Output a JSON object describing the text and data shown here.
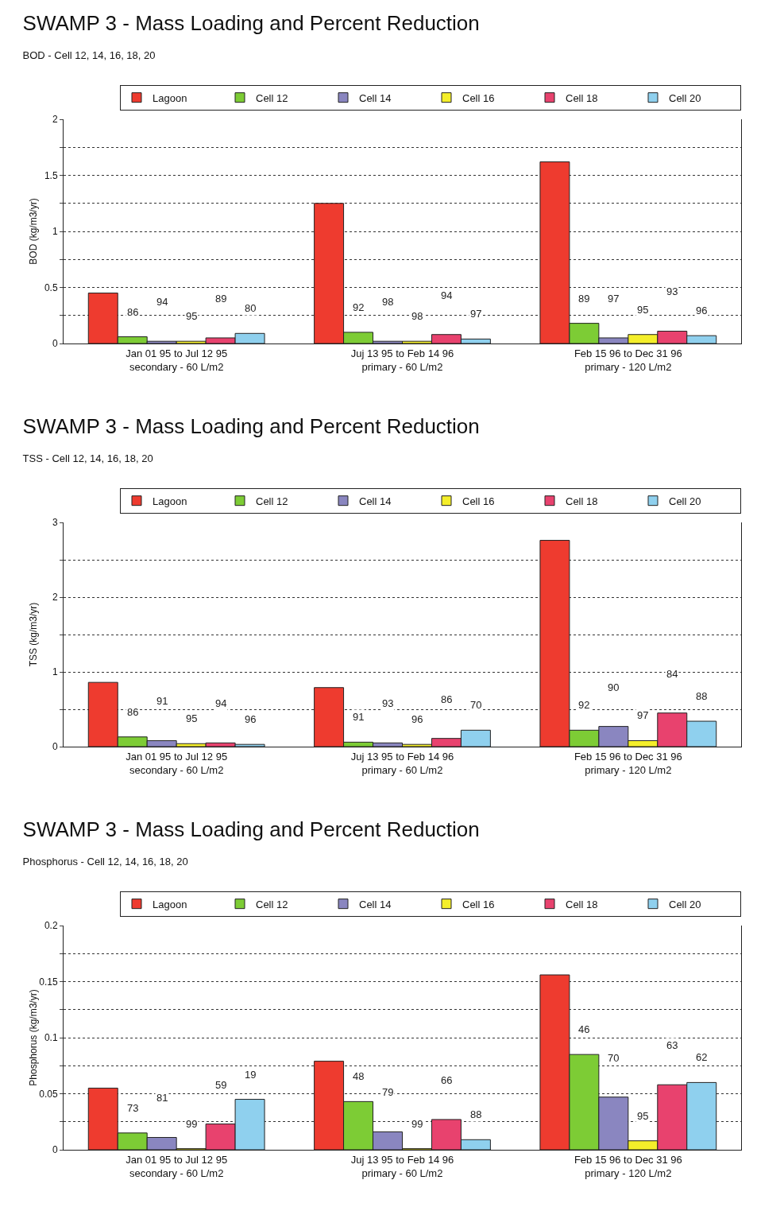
{
  "chart_data": [
    {
      "type": "bar",
      "title": "SWAMP 3 - Mass Loading and Percent Reduction",
      "subtitle": "BOD - Cell 12, 14, 16, 18, 20",
      "ylabel": "BOD (kg/m3/yr)",
      "categories": [
        "Jan 01 95 to Jul 12 95\nsecondary - 60 L/m2",
        "Juj 13 95 to Feb 14 96\nprimary - 60 L/m2",
        "Feb 15 96 to Dec 31 96\nprimary - 120 L/m2"
      ],
      "ylim": [
        0,
        2
      ],
      "yticks": [
        0,
        {
          "value": 0.25,
          "label": null
        },
        0.5,
        {
          "value": 0.75,
          "label": null
        },
        1,
        {
          "value": 1.25,
          "label": null
        },
        1.5,
        {
          "value": 1.75,
          "label": null
        },
        2
      ],
      "grid": "y",
      "legend": "top right",
      "series": [
        {
          "name": "Lagoon",
          "color": "#ee3b2f",
          "values": [
            0.45,
            1.25,
            1.62
          ]
        },
        {
          "name": "Cell 12",
          "color": "#7dcc35",
          "values": [
            0.06,
            0.1,
            0.18
          ]
        },
        {
          "name": "Cell 14",
          "color": "#8a86c0",
          "values": [
            0.02,
            0.02,
            0.05
          ]
        },
        {
          "name": "Cell 16",
          "color": "#f4ee2a",
          "values": [
            0.02,
            0.02,
            0.08
          ]
        },
        {
          "name": "Cell 18",
          "color": "#e8426e",
          "values": [
            0.05,
            0.08,
            0.11
          ]
        },
        {
          "name": "Cell 20",
          "color": "#8fd0ee",
          "values": [
            0.09,
            0.04,
            0.07
          ]
        }
      ],
      "annotations": [
        "86",
        "94",
        "95",
        "89",
        "80",
        "92",
        "98",
        "98",
        "94",
        "97",
        "89",
        "97",
        "95",
        "93",
        "96"
      ]
    },
    {
      "type": "bar",
      "title": "SWAMP 3 - Mass Loading and Percent Reduction",
      "subtitle": "TSS - Cell 12, 14, 16, 18, 20",
      "ylabel": "TSS (kg/m3/yr)",
      "categories": [
        "Jan 01 95 to Jul 12 95\nsecondary - 60 L/m2",
        "Juj 13 95 to Feb 14 96\nprimary - 60 L/m2",
        "Feb 15 96 to Dec 31 96\nprimary - 120 L/m2"
      ],
      "ylim": [
        0,
        3
      ],
      "yticks": [
        0,
        {
          "value": 0.5,
          "label": null
        },
        1,
        {
          "value": 1.5,
          "label": null
        },
        2,
        {
          "value": 2.5,
          "label": null
        },
        3
      ],
      "grid": "y",
      "legend": "top right",
      "series": [
        {
          "name": "Lagoon",
          "color": "#ee3b2f",
          "values": [
            0.86,
            0.79,
            2.76
          ]
        },
        {
          "name": "Cell 12",
          "color": "#7dcc35",
          "values": [
            0.13,
            0.06,
            0.22
          ]
        },
        {
          "name": "Cell 14",
          "color": "#8a86c0",
          "values": [
            0.08,
            0.05,
            0.27
          ]
        },
        {
          "name": "Cell 16",
          "color": "#f4ee2a",
          "values": [
            0.04,
            0.03,
            0.08
          ]
        },
        {
          "name": "Cell 18",
          "color": "#e8426e",
          "values": [
            0.05,
            0.11,
            0.45
          ]
        },
        {
          "name": "Cell 20",
          "color": "#8fd0ee",
          "values": [
            0.03,
            0.22,
            0.34
          ]
        }
      ],
      "annotations": [
        "86",
        "91",
        "95",
        "94",
        "96",
        "91",
        "93",
        "96",
        "86",
        "70",
        "92",
        "90",
        "97",
        "84",
        "88"
      ]
    },
    {
      "type": "bar",
      "title": "SWAMP 3 - Mass Loading and Percent Reduction",
      "subtitle": "Phosphorus - Cell 12, 14, 16, 18, 20",
      "ylabel": "Phosphorus (kg/m3/yr)",
      "categories": [
        "Jan 01 95 to Jul 12 95\nsecondary - 60 L/m2",
        "Juj 13 95 to Feb 14 96\nprimary - 60 L/m2",
        "Feb 15 96 to Dec 31 96\nprimary - 120 L/m2"
      ],
      "ylim": [
        0,
        0.2
      ],
      "yticks": [
        0,
        {
          "value": 0.025,
          "label": null
        },
        0.05,
        {
          "value": 0.075,
          "label": null
        },
        0.1,
        {
          "value": 0.125,
          "label": null
        },
        0.15,
        {
          "value": 0.175,
          "label": null
        },
        0.2
      ],
      "grid": "y",
      "legend": "top right",
      "series": [
        {
          "name": "Lagoon",
          "color": "#ee3b2f",
          "values": [
            0.055,
            0.079,
            0.156
          ]
        },
        {
          "name": "Cell 12",
          "color": "#7dcc35",
          "values": [
            0.015,
            0.043,
            0.085
          ]
        },
        {
          "name": "Cell 14",
          "color": "#8a86c0",
          "values": [
            0.011,
            0.016,
            0.047
          ]
        },
        {
          "name": "Cell 16",
          "color": "#f4ee2a",
          "values": [
            0.001,
            0.001,
            0.008
          ]
        },
        {
          "name": "Cell 18",
          "color": "#e8426e",
          "values": [
            0.023,
            0.027,
            0.058
          ]
        },
        {
          "name": "Cell 20",
          "color": "#8fd0ee",
          "values": [
            0.045,
            0.009,
            0.06
          ]
        }
      ],
      "annotations": [
        "73",
        "81",
        "99",
        "59",
        "19",
        "48",
        "79",
        "99",
        "66",
        "88",
        "46",
        "70",
        "95",
        "63",
        "62"
      ]
    }
  ]
}
